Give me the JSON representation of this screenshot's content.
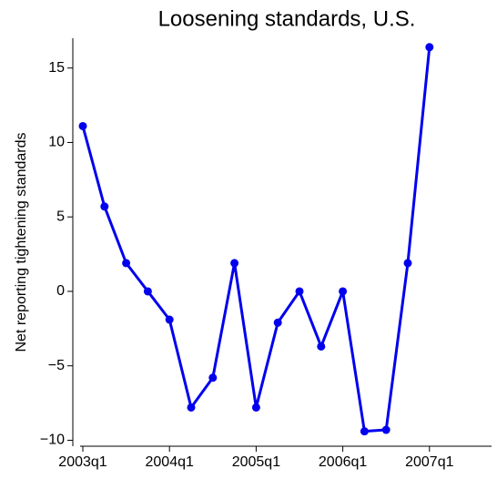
{
  "chart_data": {
    "type": "line",
    "title": "Loosening standards, U.S.",
    "y_label": "Net reporting tightening standards",
    "categories": [
      "2003q1",
      null,
      null,
      null,
      "2004q1",
      null,
      null,
      null,
      "2005q1",
      null,
      null,
      null,
      "2006q1",
      null,
      null,
      null,
      "2007q1"
    ],
    "series": [
      {
        "name": "Net reporting tightening standards",
        "color": "#0000ee",
        "values": [
          11.1,
          5.7,
          1.9,
          0,
          -1.9,
          -7.8,
          -5.8,
          1.9,
          -7.8,
          -2.1,
          0,
          -3.7,
          0,
          -9.4,
          -9.3,
          1.9,
          16.4
        ]
      }
    ],
    "ylim": [
      -10.4,
      17
    ],
    "yticks": [
      {
        "value": -10,
        "label": "−10"
      },
      {
        "value": -5,
        "label": "−5"
      },
      0,
      5,
      10,
      15
    ],
    "grid": false
  }
}
